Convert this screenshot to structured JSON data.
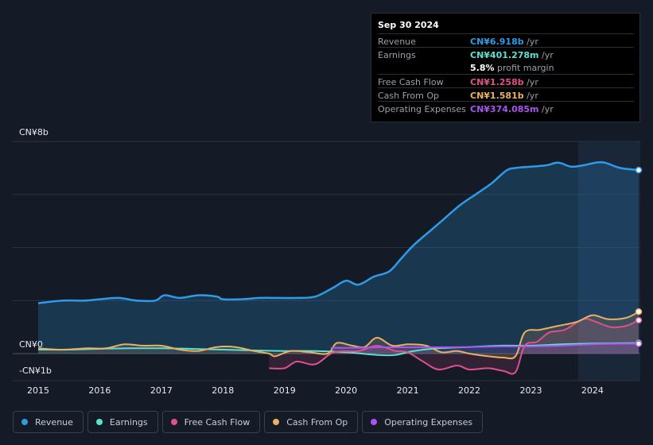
{
  "tooltip": {
    "date": "Sep 30 2024",
    "rows": [
      {
        "label": "Revenue",
        "value": "CN¥6.918b",
        "unit": " /yr",
        "color": "#2f9be8"
      },
      {
        "label": "Earnings",
        "value": "CN¥401.278m",
        "unit": " /yr",
        "color": "#5ce0cf"
      },
      {
        "label": "",
        "value": "5.8%",
        "unit": " profit margin",
        "color": "#ffffff"
      },
      {
        "label": "Free Cash Flow",
        "value": "CN¥1.258b",
        "unit": " /yr",
        "color": "#e0508a"
      },
      {
        "label": "Cash From Op",
        "value": "CN¥1.581b",
        "unit": " /yr",
        "color": "#eab060"
      },
      {
        "label": "Operating Expenses",
        "value": "CN¥374.085m",
        "unit": " /yr",
        "color": "#a855f0"
      }
    ]
  },
  "legend": [
    {
      "label": "Revenue",
      "color": "#2f9be8"
    },
    {
      "label": "Earnings",
      "color": "#5ce0cf"
    },
    {
      "label": "Free Cash Flow",
      "color": "#e0508a"
    },
    {
      "label": "Cash From Op",
      "color": "#eab060"
    },
    {
      "label": "Operating Expenses",
      "color": "#a855f0"
    }
  ],
  "chart_data": {
    "type": "area",
    "y_axis_labels": [
      "CN¥8b",
      "CN¥0",
      "-CN¥1b"
    ],
    "ylim": [
      -1,
      8
    ],
    "xlim": [
      2015,
      2024.75
    ],
    "x_ticks": [
      "2015",
      "2016",
      "2017",
      "2018",
      "2019",
      "2020",
      "2021",
      "2022",
      "2023",
      "2024"
    ],
    "grid": true,
    "series": [
      {
        "name": "Revenue",
        "color": "#2f9be8",
        "fill": true,
        "points": [
          [
            2015,
            1.9
          ],
          [
            2015.4,
            2.0
          ],
          [
            2015.75,
            2.0
          ],
          [
            2016,
            2.05
          ],
          [
            2016.3,
            2.1
          ],
          [
            2016.6,
            2.0
          ],
          [
            2016.9,
            2.0
          ],
          [
            2017.05,
            2.2
          ],
          [
            2017.3,
            2.1
          ],
          [
            2017.6,
            2.2
          ],
          [
            2017.9,
            2.15
          ],
          [
            2018,
            2.05
          ],
          [
            2018.3,
            2.05
          ],
          [
            2018.6,
            2.1
          ],
          [
            2018.9,
            2.1
          ],
          [
            2019.2,
            2.1
          ],
          [
            2019.5,
            2.15
          ],
          [
            2019.8,
            2.5
          ],
          [
            2020,
            2.75
          ],
          [
            2020.2,
            2.6
          ],
          [
            2020.45,
            2.9
          ],
          [
            2020.7,
            3.1
          ],
          [
            2020.9,
            3.6
          ],
          [
            2021.1,
            4.1
          ],
          [
            2021.35,
            4.6
          ],
          [
            2021.6,
            5.1
          ],
          [
            2021.85,
            5.6
          ],
          [
            2022.1,
            6.0
          ],
          [
            2022.35,
            6.4
          ],
          [
            2022.6,
            6.9
          ],
          [
            2022.75,
            7.0
          ],
          [
            2023.0,
            7.05
          ],
          [
            2023.25,
            7.1
          ],
          [
            2023.45,
            7.2
          ],
          [
            2023.65,
            7.05
          ],
          [
            2023.85,
            7.1
          ],
          [
            2024.05,
            7.2
          ],
          [
            2024.2,
            7.2
          ],
          [
            2024.45,
            7.0
          ],
          [
            2024.75,
            6.92
          ]
        ]
      },
      {
        "name": "Earnings",
        "color": "#5ce0cf",
        "fill": false,
        "points": [
          [
            2015,
            0.15
          ],
          [
            2015.5,
            0.15
          ],
          [
            2016,
            0.18
          ],
          [
            2016.5,
            0.2
          ],
          [
            2017,
            0.2
          ],
          [
            2017.5,
            0.18
          ],
          [
            2018,
            0.15
          ],
          [
            2018.5,
            0.12
          ],
          [
            2019,
            0.1
          ],
          [
            2019.5,
            0.1
          ],
          [
            2020,
            0.05
          ],
          [
            2020.5,
            -0.05
          ],
          [
            2020.8,
            -0.05
          ],
          [
            2021.1,
            0.1
          ],
          [
            2021.5,
            0.2
          ],
          [
            2022,
            0.25
          ],
          [
            2022.5,
            0.3
          ],
          [
            2023,
            0.3
          ],
          [
            2023.5,
            0.35
          ],
          [
            2024,
            0.38
          ],
          [
            2024.75,
            0.4
          ]
        ]
      },
      {
        "name": "Free Cash Flow",
        "color": "#e0508a",
        "fill": true,
        "points": [
          [
            2018.75,
            -0.55
          ],
          [
            2019.0,
            -0.55
          ],
          [
            2019.2,
            -0.3
          ],
          [
            2019.5,
            -0.4
          ],
          [
            2019.8,
            0.05
          ],
          [
            2020.2,
            0.1
          ],
          [
            2020.5,
            0.3
          ],
          [
            2020.8,
            0.1
          ],
          [
            2021.0,
            0.05
          ],
          [
            2021.25,
            -0.3
          ],
          [
            2021.5,
            -0.6
          ],
          [
            2021.8,
            -0.45
          ],
          [
            2022.0,
            -0.6
          ],
          [
            2022.3,
            -0.55
          ],
          [
            2022.55,
            -0.65
          ],
          [
            2022.75,
            -0.7
          ],
          [
            2022.9,
            0.3
          ],
          [
            2023.1,
            0.45
          ],
          [
            2023.3,
            0.8
          ],
          [
            2023.55,
            0.9
          ],
          [
            2023.85,
            1.3
          ],
          [
            2024.05,
            1.2
          ],
          [
            2024.3,
            1.0
          ],
          [
            2024.55,
            1.05
          ],
          [
            2024.75,
            1.258
          ]
        ]
      },
      {
        "name": "Cash From Op",
        "color": "#eab060",
        "fill": true,
        "points": [
          [
            2015,
            0.2
          ],
          [
            2015.4,
            0.15
          ],
          [
            2015.8,
            0.2
          ],
          [
            2016.1,
            0.2
          ],
          [
            2016.4,
            0.35
          ],
          [
            2016.7,
            0.3
          ],
          [
            2017.0,
            0.3
          ],
          [
            2017.3,
            0.15
          ],
          [
            2017.6,
            0.1
          ],
          [
            2017.9,
            0.25
          ],
          [
            2018.2,
            0.25
          ],
          [
            2018.5,
            0.1
          ],
          [
            2018.75,
            0.0
          ],
          [
            2018.85,
            -0.1
          ],
          [
            2019.1,
            0.1
          ],
          [
            2019.4,
            0.05
          ],
          [
            2019.7,
            0.0
          ],
          [
            2019.85,
            0.4
          ],
          [
            2020.1,
            0.3
          ],
          [
            2020.3,
            0.25
          ],
          [
            2020.5,
            0.6
          ],
          [
            2020.75,
            0.3
          ],
          [
            2021.0,
            0.35
          ],
          [
            2021.3,
            0.3
          ],
          [
            2021.55,
            0.05
          ],
          [
            2021.8,
            0.1
          ],
          [
            2022.0,
            0.0
          ],
          [
            2022.3,
            -0.1
          ],
          [
            2022.55,
            -0.15
          ],
          [
            2022.75,
            -0.1
          ],
          [
            2022.9,
            0.8
          ],
          [
            2023.15,
            0.9
          ],
          [
            2023.45,
            1.05
          ],
          [
            2023.75,
            1.2
          ],
          [
            2024.0,
            1.45
          ],
          [
            2024.25,
            1.3
          ],
          [
            2024.55,
            1.35
          ],
          [
            2024.75,
            1.581
          ]
        ]
      },
      {
        "name": "Operating Expenses",
        "color": "#a855f0",
        "fill": true,
        "points": [
          [
            2019.75,
            0.22
          ],
          [
            2020.2,
            0.22
          ],
          [
            2020.6,
            0.24
          ],
          [
            2021.0,
            0.24
          ],
          [
            2021.5,
            0.24
          ],
          [
            2022.0,
            0.25
          ],
          [
            2022.5,
            0.27
          ],
          [
            2023.0,
            0.27
          ],
          [
            2023.5,
            0.3
          ],
          [
            2024.0,
            0.35
          ],
          [
            2024.3,
            0.37
          ],
          [
            2024.75,
            0.374
          ]
        ]
      }
    ]
  }
}
